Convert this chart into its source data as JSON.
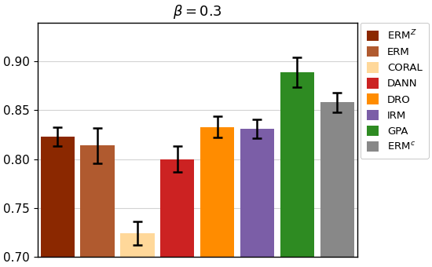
{
  "title": "$\\beta = 0.3$",
  "categories": [
    "ERM$^Z$",
    "ERM",
    "CORAL",
    "DANN",
    "DRO",
    "IRM",
    "GPA",
    "ERM$^c$"
  ],
  "values": [
    0.823,
    0.814,
    0.724,
    0.8,
    0.833,
    0.831,
    0.889,
    0.858
  ],
  "errors": [
    0.01,
    0.018,
    0.012,
    0.013,
    0.011,
    0.01,
    0.015,
    0.01
  ],
  "colors": [
    "#8B2800",
    "#B05A2F",
    "#FFD89A",
    "#CC2222",
    "#FF8C00",
    "#7B5EA7",
    "#2E8B22",
    "#888888"
  ],
  "ylim": [
    0.7,
    0.94
  ],
  "yticks": [
    0.7,
    0.75,
    0.8,
    0.85,
    0.9
  ],
  "legend_labels": [
    "ERM$^Z$",
    "ERM",
    "CORAL",
    "DANN",
    "DRO",
    "IRM",
    "GPA",
    "ERM$^c$"
  ],
  "legend_colors": [
    "#8B2800",
    "#B05A2F",
    "#FFD89A",
    "#CC2222",
    "#FF8C00",
    "#7B5EA7",
    "#2E8B22",
    "#888888"
  ],
  "bar_width": 0.85,
  "figsize": [
    5.5,
    3.4
  ],
  "dpi": 100
}
